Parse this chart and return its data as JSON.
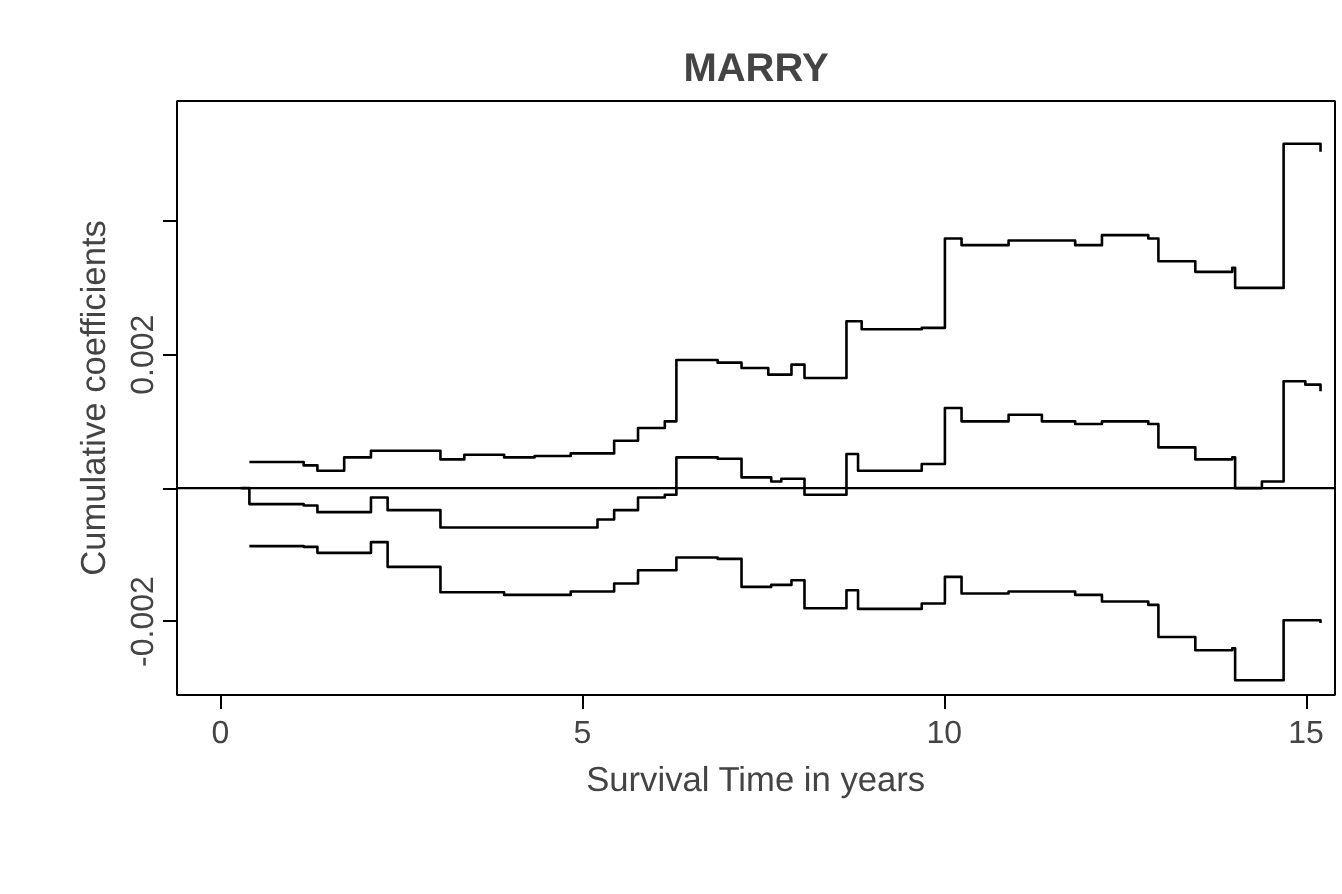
{
  "chart_data": {
    "type": "step",
    "title": "MARRY",
    "xlabel": "Survival Time in years",
    "ylabel": "Cumulative coefficients",
    "xlim": [
      -0.6,
      15.4
    ],
    "ylim": [
      -0.0031,
      0.0058
    ],
    "xticks": [
      0,
      5,
      10,
      15
    ],
    "yticks": [
      -0.002,
      {
        "value": 0,
        "label": null
      },
      0.002,
      {
        "value": 0.004,
        "label": null
      }
    ],
    "grid": false,
    "line_style": "solid",
    "marker": "none",
    "ref_lines": [
      {
        "axis": "y",
        "value": 0,
        "color": "#000000"
      }
    ],
    "series": [
      {
        "color": "#000000",
        "x": [
          0.4,
          1.15,
          1.34,
          1.71,
          2.08,
          3.04,
          3.37,
          3.92,
          4.34,
          4.84,
          5.44,
          5.77,
          6.14,
          6.3,
          6.87,
          7.2,
          7.57,
          7.89,
          8.07,
          8.65,
          8.86,
          9.69,
          10.01,
          10.24,
          10.89,
          11.81,
          12.18,
          12.82,
          12.96,
          13.47,
          13.98,
          14.02,
          14.69,
          15.2
        ],
        "values": [
          0.00039,
          0.00034,
          0.00026,
          0.00046,
          0.00056,
          0.00043,
          0.0005,
          0.00046,
          0.00048,
          0.00052,
          0.00071,
          0.0009,
          0.001,
          0.00192,
          0.00188,
          0.0018,
          0.0017,
          0.00185,
          0.00165,
          0.0025,
          0.00238,
          0.0024,
          0.00374,
          0.00364,
          0.00371,
          0.00364,
          0.00379,
          0.00374,
          0.0034,
          0.00324,
          0.0033,
          0.003,
          0.00516,
          0.00504
        ]
      },
      {
        "color": "#000000",
        "x": [
          0.28,
          0.4,
          1.15,
          1.34,
          2.08,
          2.31,
          3.04,
          4.34,
          5.21,
          5.44,
          5.77,
          6.14,
          6.3,
          6.87,
          7.2,
          7.61,
          7.75,
          8.07,
          8.65,
          8.81,
          9.69,
          10.01,
          10.24,
          10.89,
          11.35,
          11.81,
          12.18,
          12.82,
          12.96,
          13.47,
          13.98,
          14.02,
          14.39,
          14.69,
          14.99,
          15.2
        ],
        "values": [
          0,
          -0.00024,
          -0.00026,
          -0.00036,
          -0.00014,
          -0.00033,
          -0.00059,
          -0.00059,
          -0.00047,
          -0.00033,
          -0.00014,
          -0.0001,
          0.00046,
          0.00044,
          0.00016,
          0.0001,
          0.00014,
          -0.0001,
          0.00051,
          0.00026,
          0.00036,
          0.0012,
          0.001,
          0.0011,
          0.001,
          0.00096,
          0.001,
          0.00096,
          0.00061,
          0.00043,
          0.00046,
          0,
          0.0001,
          0.0016,
          0.00155,
          0.00145
        ]
      },
      {
        "color": "#000000",
        "x": [
          0.4,
          1.15,
          1.34,
          2.08,
          2.31,
          3.04,
          3.92,
          4.84,
          5.44,
          5.77,
          6.3,
          6.87,
          7.2,
          7.61,
          7.89,
          8.07,
          8.65,
          8.81,
          9.69,
          10.01,
          10.24,
          10.89,
          11.81,
          12.18,
          12.82,
          12.96,
          13.47,
          13.98,
          14.02,
          14.69,
          15.2
        ],
        "values": [
          -0.00087,
          -0.00088,
          -0.00097,
          -0.00081,
          -0.00118,
          -0.00156,
          -0.0016,
          -0.00155,
          -0.00143,
          -0.00123,
          -0.00104,
          -0.00106,
          -0.00148,
          -0.00145,
          -0.00138,
          -0.0018,
          -0.00153,
          -0.00181,
          -0.00173,
          -0.00133,
          -0.00158,
          -0.00155,
          -0.0016,
          -0.0017,
          -0.00175,
          -0.00223,
          -0.00243,
          -0.0024,
          -0.00288,
          -0.00198,
          -0.00202
        ]
      }
    ]
  }
}
